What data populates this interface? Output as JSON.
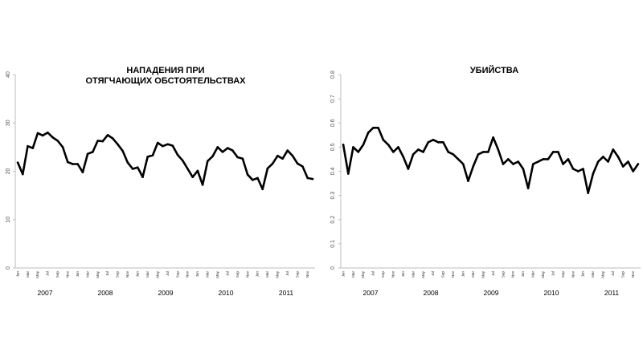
{
  "chart_data": [
    {
      "type": "line",
      "title_lines": [
        "НАПАДЕНИЯ ПРИ",
        "ОТЯГЧАЮЩИХ ОБСТОЯТЕЛЬСТВАХ"
      ],
      "ylim": [
        0,
        40
      ],
      "yticks": [
        "0",
        "10",
        "20",
        "30",
        "40"
      ],
      "month_labels": [
        "Jan",
        "Mar",
        "May",
        "Jul",
        "Sep",
        "Nov",
        "Jan",
        "Mar",
        "May",
        "Jul",
        "Sep",
        "Nov",
        "Jan",
        "Mar",
        "May",
        "Jul",
        "Sep",
        "Nov",
        "Jan",
        "Mar",
        "May",
        "Jul",
        "Sep",
        "Nov",
        "Jan",
        "Mar",
        "May",
        "Jul",
        "Sep",
        "Nov"
      ],
      "year_labels": [
        "2007",
        "2008",
        "2009",
        "2010",
        "2011"
      ],
      "grid": false,
      "legend": "none",
      "series": [
        {
          "values": [
            21.8,
            19.4,
            25.2,
            24.8,
            27.9,
            27.4,
            28.0,
            27.0,
            26.3,
            25.0,
            21.9,
            21.5,
            21.5,
            19.8,
            23.6,
            24.0,
            26.3,
            26.2,
            27.5,
            26.8,
            25.6,
            24.2,
            21.8,
            20.5,
            20.8,
            18.8,
            23.0,
            23.3,
            25.9,
            25.2,
            25.6,
            25.3,
            23.4,
            22.2,
            20.5,
            18.8,
            20.1,
            17.2,
            22.1,
            23.1,
            25.0,
            24.0,
            24.8,
            24.3,
            22.9,
            22.6,
            19.3,
            18.2,
            18.6,
            16.3,
            20.6,
            21.6,
            23.2,
            22.6,
            24.3,
            23.2,
            21.6,
            21.0,
            18.6,
            18.4
          ]
        }
      ]
    },
    {
      "type": "line",
      "title_lines": [
        "УБИЙСТВА"
      ],
      "ylim": [
        0,
        0.8
      ],
      "yticks": [
        "0",
        "0.1",
        "0.2",
        "0.3",
        "0.4",
        "0.5",
        "0.6",
        "0.7",
        "0.8"
      ],
      "month_labels": [
        "Jan",
        "Mar",
        "May",
        "Jul",
        "Sep",
        "Nov",
        "Jan",
        "Mar",
        "May",
        "Jul",
        "Sep",
        "Nov",
        "Jan",
        "Mar",
        "May",
        "Jul",
        "Sep",
        "Nov",
        "Jan",
        "Mar",
        "May",
        "Jul",
        "Sep",
        "Nov",
        "Jan",
        "Mar",
        "May",
        "Jul",
        "Sep",
        "Nov"
      ],
      "year_labels": [
        "2007",
        "2008",
        "2009",
        "2010",
        "2011"
      ],
      "grid": false,
      "legend": "none",
      "series": [
        {
          "values": [
            0.51,
            0.39,
            0.5,
            0.48,
            0.51,
            0.56,
            0.58,
            0.58,
            0.53,
            0.51,
            0.48,
            0.5,
            0.46,
            0.41,
            0.47,
            0.49,
            0.48,
            0.52,
            0.53,
            0.52,
            0.52,
            0.48,
            0.47,
            0.45,
            0.43,
            0.36,
            0.42,
            0.47,
            0.48,
            0.48,
            0.54,
            0.49,
            0.43,
            0.45,
            0.43,
            0.44,
            0.41,
            0.33,
            0.43,
            0.44,
            0.45,
            0.45,
            0.48,
            0.48,
            0.43,
            0.45,
            0.41,
            0.4,
            0.41,
            0.31,
            0.39,
            0.44,
            0.46,
            0.44,
            0.49,
            0.46,
            0.42,
            0.44,
            0.4,
            0.43
          ]
        }
      ]
    }
  ]
}
